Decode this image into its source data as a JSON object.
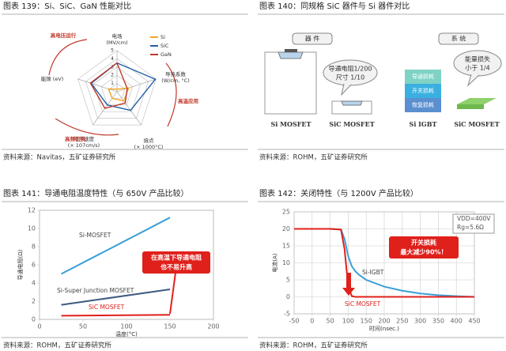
{
  "figures": [
    {
      "caption": "图表 139：Si、SiC、GaN 性能对比",
      "source": "资料来源：Navitas，五矿证券研究所"
    },
    {
      "caption": "图表 140：同规格 SiC 器件与 Si 器件对比",
      "source": "资料来源：ROHM，五矿证券研究所",
      "diagram": {
        "device_title": "器 件",
        "system_title": "系 统",
        "device_note": [
          "导通电阻1/200",
          "尺寸 1/10"
        ],
        "system_note": [
          "能量损失",
          "小于 1/4"
        ],
        "loss_layers": [
          "导通损耗",
          "开关损耗",
          "恢复损耗"
        ],
        "labels": [
          "Si MOSFET",
          "SiC MOSFET",
          "Si IGBT",
          "SiC MOSFET"
        ]
      }
    },
    {
      "caption": "图表 141：导通电阻温度特性（与 650V 产品比较）",
      "source": "资料来源：ROHM，五矿证券研究所"
    },
    {
      "caption": "图表 142：关闭特性（与 1200V 产品比较）",
      "source": "资料来源：ROHM，五矿证券研究所"
    }
  ],
  "chart_data": [
    {
      "type": "radar",
      "axes": [
        [
          "电场",
          "(MV/cm)"
        ],
        [
          "导热系数",
          "(W/cm, °C)"
        ],
        [
          "熔点",
          "(× 1000°C)"
        ],
        [
          "电子速度",
          "(× 107cm/s)"
        ],
        [
          "能隙 (eV)"
        ]
      ],
      "rlim": [
        0,
        5
      ],
      "rticks": [
        1,
        2,
        3,
        4,
        5
      ],
      "series": [
        {
          "name": "Si",
          "color": "#f5a623",
          "values": [
            0.3,
            1.5,
            1.4,
            1,
            1.1
          ]
        },
        {
          "name": "SiC",
          "color": "#1f5fa8",
          "values": [
            3.5,
            4.9,
            2.8,
            2,
            3.3
          ]
        },
        {
          "name": "GaN",
          "color": "#c0392b",
          "values": [
            3.5,
            1.3,
            1.7,
            2.5,
            3.4
          ]
        }
      ],
      "annotations": [
        "高电压运行",
        "高温应用",
        "高频切换"
      ]
    },
    {
      "type": "line",
      "x": [
        25,
        150
      ],
      "xlim": [
        0,
        200
      ],
      "xticks": [
        0,
        50,
        100,
        150,
        200
      ],
      "ylim": [
        0,
        12
      ],
      "yticks": [
        0,
        2,
        4,
        6,
        8,
        10,
        12
      ],
      "xlabel": "温度(°C)",
      "ylabel": "导通电阻(Ω)",
      "grid": false,
      "series": [
        {
          "name": "Si-MOSFET",
          "color": "#3a9fd8",
          "values": [
            5,
            11.2
          ]
        },
        {
          "name": "Si-Super Junction MOSFET",
          "color": "#3d5a80",
          "values": [
            1.6,
            3.3
          ]
        },
        {
          "name": "SiC MOSFET",
          "color": "#e0201b",
          "values": [
            0.4,
            0.5
          ]
        }
      ],
      "annotation": [
        "在高温下导通电阻",
        "也不易升高"
      ]
    },
    {
      "type": "line",
      "x": [
        -50,
        0,
        50,
        80,
        90,
        100,
        110,
        120,
        130,
        150,
        200,
        250,
        300,
        350,
        400,
        450
      ],
      "xlim": [
        -50,
        450
      ],
      "xticks": [
        -50,
        0,
        50,
        100,
        150,
        200,
        250,
        300,
        350,
        400,
        450
      ],
      "ylim": [
        -5,
        25
      ],
      "yticks": [
        -5,
        0,
        5,
        10,
        15,
        20,
        25
      ],
      "xlabel": "时间(nsec.)",
      "ylabel": "电流(A)",
      "grid": true,
      "series": [
        {
          "name": "Si-IGBT",
          "color": "#3a9fd8",
          "values": [
            20,
            20,
            20,
            19.8,
            17,
            12,
            9,
            7.5,
            6.5,
            5,
            3,
            1.8,
            1,
            0.5,
            0.2,
            0
          ]
        },
        {
          "name": "SiC MOSFET",
          "color": "#e0201b",
          "values": [
            20,
            20,
            20,
            19.8,
            14,
            3,
            0.2,
            0,
            0,
            0,
            0,
            0,
            0,
            0,
            0,
            0
          ]
        }
      ],
      "conditions": [
        "VDD=400V",
        "Rg=5.6Ω"
      ],
      "annotation": [
        "开关损耗",
        "最大减少90%！"
      ]
    }
  ]
}
